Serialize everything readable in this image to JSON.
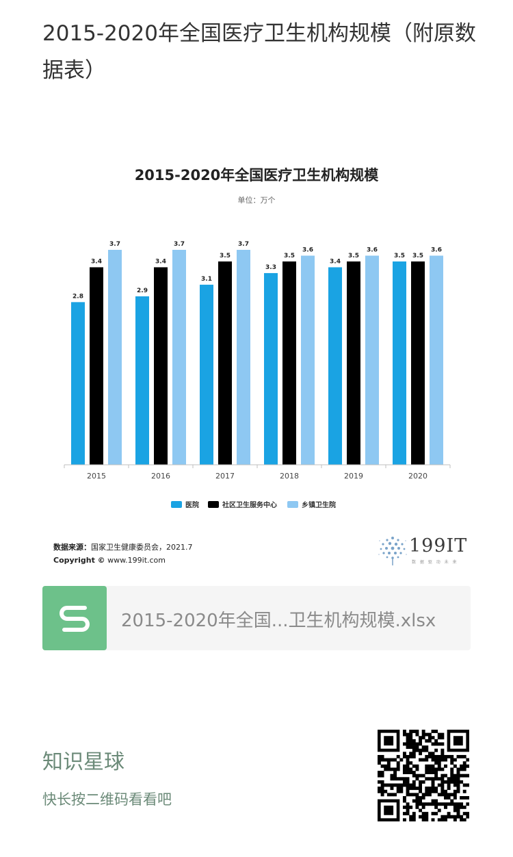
{
  "page": {
    "title": "2015-2020年全国医疗卫生机构规模（附原数据表）"
  },
  "chart_data": {
    "type": "bar",
    "title": "2015-2020年全国医疗卫生机构规模",
    "subtitle": "单位：万个",
    "categories": [
      "2015",
      "2016",
      "2017",
      "2018",
      "2019",
      "2020"
    ],
    "series": [
      {
        "name": "医院",
        "values": [
          2.8,
          2.9,
          3.1,
          3.3,
          3.4,
          3.5
        ],
        "color": "#1aa3e3"
      },
      {
        "name": "社区卫生服务中心",
        "values": [
          3.4,
          3.4,
          3.5,
          3.5,
          3.5,
          3.5
        ],
        "color": "#000000"
      },
      {
        "name": "乡镇卫生院",
        "values": [
          3.7,
          3.7,
          3.7,
          3.6,
          3.6,
          3.6
        ],
        "color": "#8ec8f2"
      }
    ],
    "ylim": [
      0,
      3.7
    ],
    "grid": false,
    "legend": "bottom",
    "data_labels": true
  },
  "source": {
    "label": "数据来源：",
    "text": "国家卫生健康委员会，2021.7",
    "copyright_label": "Copyright ©",
    "copyright_text": "www.199it.com"
  },
  "brand": {
    "number": "199IT",
    "tagline": "数 据 驱 动 未 来"
  },
  "file": {
    "name": "2015-2020年全国...卫生机构规模.xlsx",
    "icon": "spreadsheet-s-icon",
    "icon_color": "#6dc18a"
  },
  "planet": {
    "title": "知识星球",
    "subtitle": "快长按二维码看看吧"
  },
  "qr": {
    "icon": "qr-code-icon"
  }
}
